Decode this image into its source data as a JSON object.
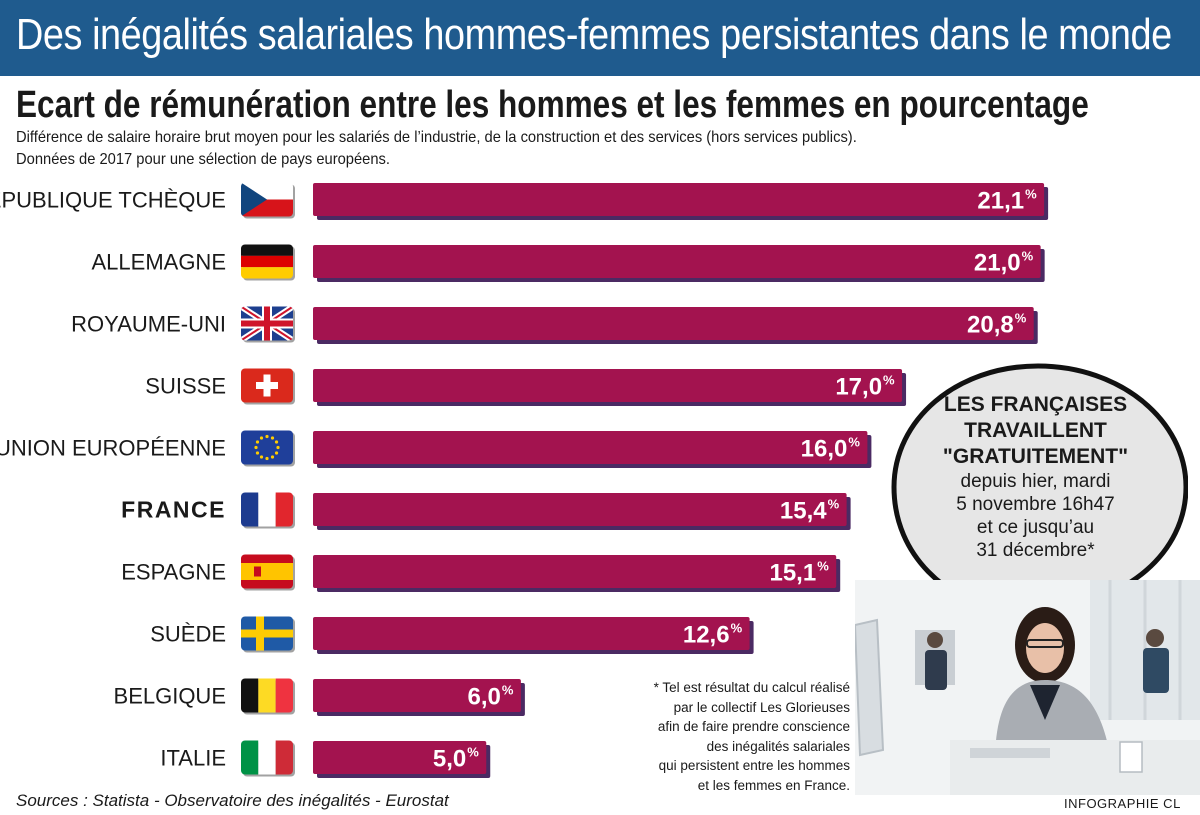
{
  "banner": {
    "title": "Des inégalités salariales hommes-femmes persistantes dans le monde"
  },
  "header": {
    "subtitle": "Ecart de rémunération entre les hommes et les femmes en pourcentage",
    "note_line1": "Différence de salaire horaire brut moyen pour les salariés de l’industrie, de la construction et des services (hors services publics).",
    "note_line2": "Données de 2017 pour une sélection de pays européens."
  },
  "colors": {
    "banner": "#1f5b8e",
    "bar": "#a3134f",
    "bar_shadow": "#4b2a63",
    "bubble": "#e6e6e6"
  },
  "chart_data": {
    "type": "bar",
    "orientation": "horizontal",
    "unit": "%",
    "categories": [
      "RÉPUBLIQUE TCHÈQUE",
      "ALLEMAGNE",
      "ROYAUME-UNI",
      "SUISSE",
      "UNION EUROPÉENNE",
      "FRANCE",
      "ESPAGNE",
      "SUÈDE",
      "BELGIQUE",
      "ITALIE"
    ],
    "values": [
      21.1,
      21.0,
      20.8,
      17.0,
      16.0,
      15.4,
      15.1,
      12.6,
      6.0,
      5.0
    ],
    "value_labels": [
      "21,1",
      "21,0",
      "20,8",
      "17,0",
      "16,0",
      "15,4",
      "15,1",
      "12,6",
      "6,0",
      "5,0"
    ],
    "value_suffix": "%",
    "highlight": "FRANCE",
    "flags": [
      "flag-czech",
      "flag-germany",
      "flag-uk",
      "flag-switzerland",
      "flag-eu",
      "flag-france",
      "flag-spain",
      "flag-sweden",
      "flag-belgium",
      "flag-italy"
    ]
  },
  "callout": {
    "line1": "LES FRANÇAISES",
    "line2": "TRAVAILLENT",
    "line3": "\"GRATUITEMENT\"",
    "line4": "depuis hier, mardi",
    "line5": "5 novembre 16h47",
    "line6": "et ce jusqu’au",
    "line7": "31 décembre*"
  },
  "footnote": {
    "line1": "* Tel est résultat du calcul réalisé",
    "line2": "par le collectif Les Glorieuses",
    "line3": "afin de faire prendre conscience",
    "line4": "des inégalités salariales",
    "line5": "qui persistent entre les hommes",
    "line6": "et les femmes en France."
  },
  "footer": {
    "sources": "Sources : Statista - Observatoire des inégalités - Eurostat",
    "credit": "INFOGRAPHIE CL"
  }
}
